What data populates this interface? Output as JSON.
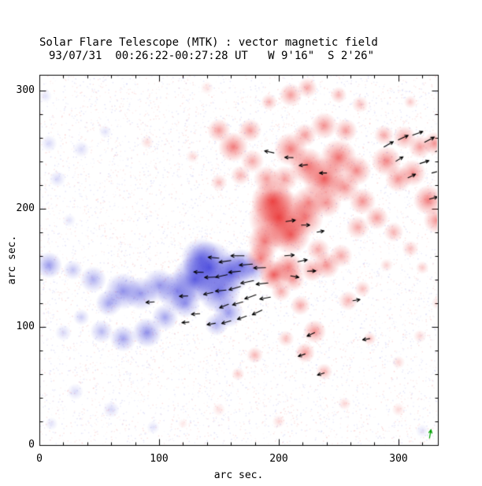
{
  "chart_data": {
    "type": "heatmap",
    "title": "Solar Flare Telescope (MTK) : vector magnetic field",
    "subtitle": "93/07/31  00:26:22-00:27:28 UT   W 9'16\"  S 2'26\"",
    "xlabel": "arc sec.",
    "ylabel": "arc sec.",
    "xlim": [
      0,
      333
    ],
    "ylim": [
      0,
      313
    ],
    "xticks": [
      0,
      100,
      200,
      300
    ],
    "yticks": [
      0,
      100,
      200,
      300
    ],
    "xtick_labels": [
      "0",
      "100",
      "200",
      "300"
    ],
    "ytick_labels": [
      "0",
      "100",
      "200",
      "300"
    ],
    "minor_tick_step": 20,
    "grid": false,
    "legend": "none",
    "colors": {
      "positive": "#e82424",
      "negative": "#3434d8",
      "frame": "#000000",
      "arrow": "#000000",
      "background": "#ffffff"
    },
    "negative_blobs": [
      [
        142,
        150,
        16,
        0.8
      ],
      [
        130,
        140,
        14,
        0.75
      ],
      [
        150,
        130,
        13,
        0.7
      ],
      [
        160,
        145,
        12,
        0.7
      ],
      [
        168,
        152,
        10,
        0.6
      ],
      [
        135,
        158,
        12,
        0.6
      ],
      [
        178,
        148,
        8,
        0.45
      ],
      [
        115,
        130,
        12,
        0.6
      ],
      [
        100,
        135,
        10,
        0.5
      ],
      [
        85,
        128,
        10,
        0.5
      ],
      [
        70,
        130,
        11,
        0.55
      ],
      [
        58,
        120,
        8,
        0.45
      ],
      [
        45,
        140,
        8,
        0.4
      ],
      [
        28,
        148,
        6,
        0.3
      ],
      [
        8,
        152,
        8,
        0.5
      ],
      [
        90,
        95,
        9,
        0.55
      ],
      [
        70,
        90,
        8,
        0.45
      ],
      [
        52,
        96,
        7,
        0.35
      ],
      [
        105,
        108,
        8,
        0.45
      ],
      [
        122,
        120,
        9,
        0.5
      ],
      [
        158,
        112,
        9,
        0.5
      ],
      [
        148,
        102,
        7,
        0.4
      ],
      [
        35,
        108,
        5,
        0.25
      ],
      [
        20,
        95,
        5,
        0.2
      ],
      [
        15,
        225,
        5,
        0.2
      ],
      [
        35,
        250,
        5,
        0.18
      ],
      [
        8,
        255,
        5,
        0.2
      ],
      [
        55,
        265,
        4,
        0.15
      ],
      [
        25,
        190,
        4,
        0.15
      ],
      [
        60,
        30,
        5,
        0.2
      ],
      [
        30,
        45,
        5,
        0.18
      ],
      [
        95,
        15,
        4,
        0.15
      ],
      [
        10,
        18,
        4,
        0.15
      ],
      [
        5,
        295,
        4,
        0.15
      ],
      [
        320,
        12,
        4,
        0.15
      ]
    ],
    "positive_blobs": [
      [
        200,
        192,
        18,
        0.85
      ],
      [
        195,
        206,
        13,
        0.8
      ],
      [
        210,
        178,
        12,
        0.7
      ],
      [
        188,
        172,
        10,
        0.6
      ],
      [
        185,
        158,
        9,
        0.6
      ],
      [
        196,
        144,
        9,
        0.75
      ],
      [
        208,
        150,
        9,
        0.6
      ],
      [
        222,
        192,
        11,
        0.6
      ],
      [
        225,
        205,
        10,
        0.55
      ],
      [
        238,
        225,
        13,
        0.75
      ],
      [
        224,
        236,
        11,
        0.65
      ],
      [
        210,
        250,
        10,
        0.6
      ],
      [
        250,
        243,
        11,
        0.65
      ],
      [
        265,
        232,
        9,
        0.55
      ],
      [
        255,
        218,
        9,
        0.5
      ],
      [
        240,
        205,
        9,
        0.5
      ],
      [
        162,
        252,
        9,
        0.6
      ],
      [
        150,
        266,
        7,
        0.45
      ],
      [
        176,
        266,
        7,
        0.45
      ],
      [
        238,
        270,
        8,
        0.5
      ],
      [
        256,
        266,
        7,
        0.45
      ],
      [
        222,
        262,
        7,
        0.45
      ],
      [
        290,
        240,
        9,
        0.55
      ],
      [
        300,
        225,
        8,
        0.5
      ],
      [
        312,
        230,
        8,
        0.5
      ],
      [
        325,
        207,
        9,
        0.6
      ],
      [
        332,
        190,
        8,
        0.5
      ],
      [
        318,
        252,
        7,
        0.45
      ],
      [
        305,
        260,
        7,
        0.45
      ],
      [
        288,
        262,
        6,
        0.4
      ],
      [
        330,
        255,
        7,
        0.5
      ],
      [
        270,
        206,
        8,
        0.5
      ],
      [
        282,
        192,
        7,
        0.45
      ],
      [
        266,
        184,
        7,
        0.4
      ],
      [
        296,
        180,
        6,
        0.35
      ],
      [
        240,
        152,
        8,
        0.5
      ],
      [
        252,
        160,
        7,
        0.4
      ],
      [
        228,
        148,
        7,
        0.45
      ],
      [
        212,
        140,
        7,
        0.45
      ],
      [
        202,
        130,
        6,
        0.4
      ],
      [
        218,
        118,
        6,
        0.4
      ],
      [
        230,
        96,
        7,
        0.5
      ],
      [
        222,
        78,
        6,
        0.45
      ],
      [
        238,
        62,
        5,
        0.35
      ],
      [
        206,
        90,
        5,
        0.3
      ],
      [
        258,
        122,
        6,
        0.35
      ],
      [
        270,
        132,
        5,
        0.3
      ],
      [
        180,
        76,
        5,
        0.35
      ],
      [
        166,
        60,
        4,
        0.25
      ],
      [
        210,
        296,
        7,
        0.45
      ],
      [
        224,
        302,
        6,
        0.4
      ],
      [
        192,
        290,
        5,
        0.35
      ],
      [
        250,
        296,
        5,
        0.35
      ],
      [
        268,
        288,
        5,
        0.3
      ],
      [
        310,
        290,
        4,
        0.25
      ],
      [
        168,
        228,
        6,
        0.35
      ],
      [
        150,
        222,
        5,
        0.3
      ],
      [
        128,
        244,
        4,
        0.2
      ],
      [
        90,
        256,
        4,
        0.18
      ],
      [
        310,
        166,
        5,
        0.3
      ],
      [
        320,
        150,
        4,
        0.25
      ],
      [
        290,
        152,
        4,
        0.22
      ],
      [
        276,
        90,
        4,
        0.3
      ],
      [
        300,
        70,
        4,
        0.2
      ],
      [
        318,
        92,
        4,
        0.2
      ],
      [
        255,
        35,
        4,
        0.2
      ],
      [
        300,
        30,
        4,
        0.18
      ],
      [
        200,
        20,
        4,
        0.18
      ],
      [
        150,
        30,
        4,
        0.15
      ],
      [
        120,
        18,
        3,
        0.12
      ],
      [
        333,
        120,
        4,
        0.2
      ],
      [
        233,
        165,
        7,
        0.4
      ],
      [
        190,
        225,
        8,
        0.45
      ],
      [
        205,
        225,
        8,
        0.45
      ],
      [
        178,
        240,
        7,
        0.4
      ],
      [
        140,
        302,
        4,
        0.15
      ]
    ],
    "arrows": {
      "color": "#000000",
      "vectors": [
        [
          171,
          160,
          180,
          11
        ],
        [
          160,
          156,
          188,
          10
        ],
        [
          150,
          158,
          175,
          9
        ],
        [
          178,
          153,
          185,
          11
        ],
        [
          189,
          150,
          182,
          10
        ],
        [
          168,
          147,
          186,
          10
        ],
        [
          157,
          144,
          192,
          10
        ],
        [
          147,
          142,
          182,
          9
        ],
        [
          137,
          146,
          178,
          8
        ],
        [
          179,
          139,
          192,
          11
        ],
        [
          191,
          137,
          186,
          10
        ],
        [
          168,
          134,
          196,
          10
        ],
        [
          156,
          131,
          186,
          9
        ],
        [
          145,
          129,
          192,
          8
        ],
        [
          181,
          127,
          200,
          10
        ],
        [
          193,
          125,
          190,
          9
        ],
        [
          170,
          121,
          196,
          9
        ],
        [
          158,
          119,
          202,
          8
        ],
        [
          186,
          114,
          205,
          9
        ],
        [
          173,
          109,
          200,
          8
        ],
        [
          160,
          105,
          196,
          8
        ],
        [
          147,
          103,
          190,
          7
        ],
        [
          134,
          111,
          184,
          7
        ],
        [
          124,
          126,
          182,
          7
        ],
        [
          96,
          121,
          184,
          7
        ],
        [
          125,
          104,
          186,
          6
        ],
        [
          205,
          160,
          5,
          8
        ],
        [
          216,
          155,
          12,
          8
        ],
        [
          224,
          147,
          2,
          7
        ],
        [
          206,
          189,
          8,
          8
        ],
        [
          219,
          186,
          0,
          7
        ],
        [
          232,
          180,
          10,
          6
        ],
        [
          210,
          143,
          350,
          7
        ],
        [
          196,
          247,
          168,
          8
        ],
        [
          212,
          243,
          178,
          7
        ],
        [
          224,
          237,
          186,
          7
        ],
        [
          240,
          230,
          180,
          6
        ],
        [
          288,
          252,
          30,
          9
        ],
        [
          300,
          258,
          25,
          9
        ],
        [
          312,
          262,
          20,
          9
        ],
        [
          322,
          256,
          28,
          9
        ],
        [
          331,
          248,
          22,
          9
        ],
        [
          318,
          238,
          18,
          8
        ],
        [
          328,
          230,
          15,
          8
        ],
        [
          333,
          221,
          20,
          8
        ],
        [
          308,
          226,
          25,
          7
        ],
        [
          298,
          240,
          32,
          7
        ],
        [
          326,
          208,
          15,
          7
        ],
        [
          333,
          196,
          10,
          7
        ],
        [
          230,
          95,
          205,
          7
        ],
        [
          238,
          61,
          198,
          6
        ],
        [
          276,
          90,
          190,
          6
        ],
        [
          222,
          77,
          200,
          6
        ],
        [
          262,
          122,
          10,
          6
        ]
      ]
    },
    "noise": {
      "count": 8000,
      "seed": 11,
      "dot_size": 1.5,
      "max_alpha": 0.12
    },
    "green_marker": {
      "x": 326,
      "y": 6,
      "angle_deg": 80,
      "length_arcsec": 7,
      "color": "#00a000"
    }
  }
}
